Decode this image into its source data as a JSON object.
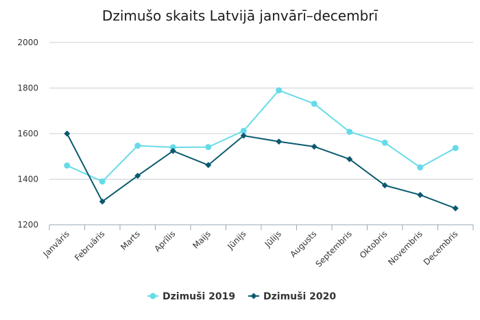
{
  "chart_data": {
    "type": "line",
    "title": "Dzimušo skaits Latvijā janvārī–decembrī",
    "categories": [
      "Janvāris",
      "Februāris",
      "Marts",
      "Aprīlis",
      "Maijs",
      "Jūnijs",
      "Jūlijs",
      "Augusts",
      "Septembris",
      "Oktobris",
      "Novembris",
      "Decembris"
    ],
    "ylim": [
      1200,
      2000
    ],
    "yticks": [
      1200,
      1400,
      1600,
      1800,
      2000
    ],
    "grid": true,
    "legend_position": "bottom",
    "series": [
      {
        "name": "Dzimuši 2019",
        "color": "#66dbe8",
        "marker": "circle",
        "values": [
          1460,
          1390,
          1547,
          1540,
          1541,
          1612,
          1790,
          1731,
          1608,
          1560,
          1452,
          1537
        ]
      },
      {
        "name": "Dzimuši 2020",
        "color": "#0a5a6e",
        "marker": "diamond",
        "values": [
          1600,
          1302,
          1415,
          1524,
          1462,
          1591,
          1565,
          1543,
          1488,
          1373,
          1331,
          1272
        ]
      }
    ]
  }
}
